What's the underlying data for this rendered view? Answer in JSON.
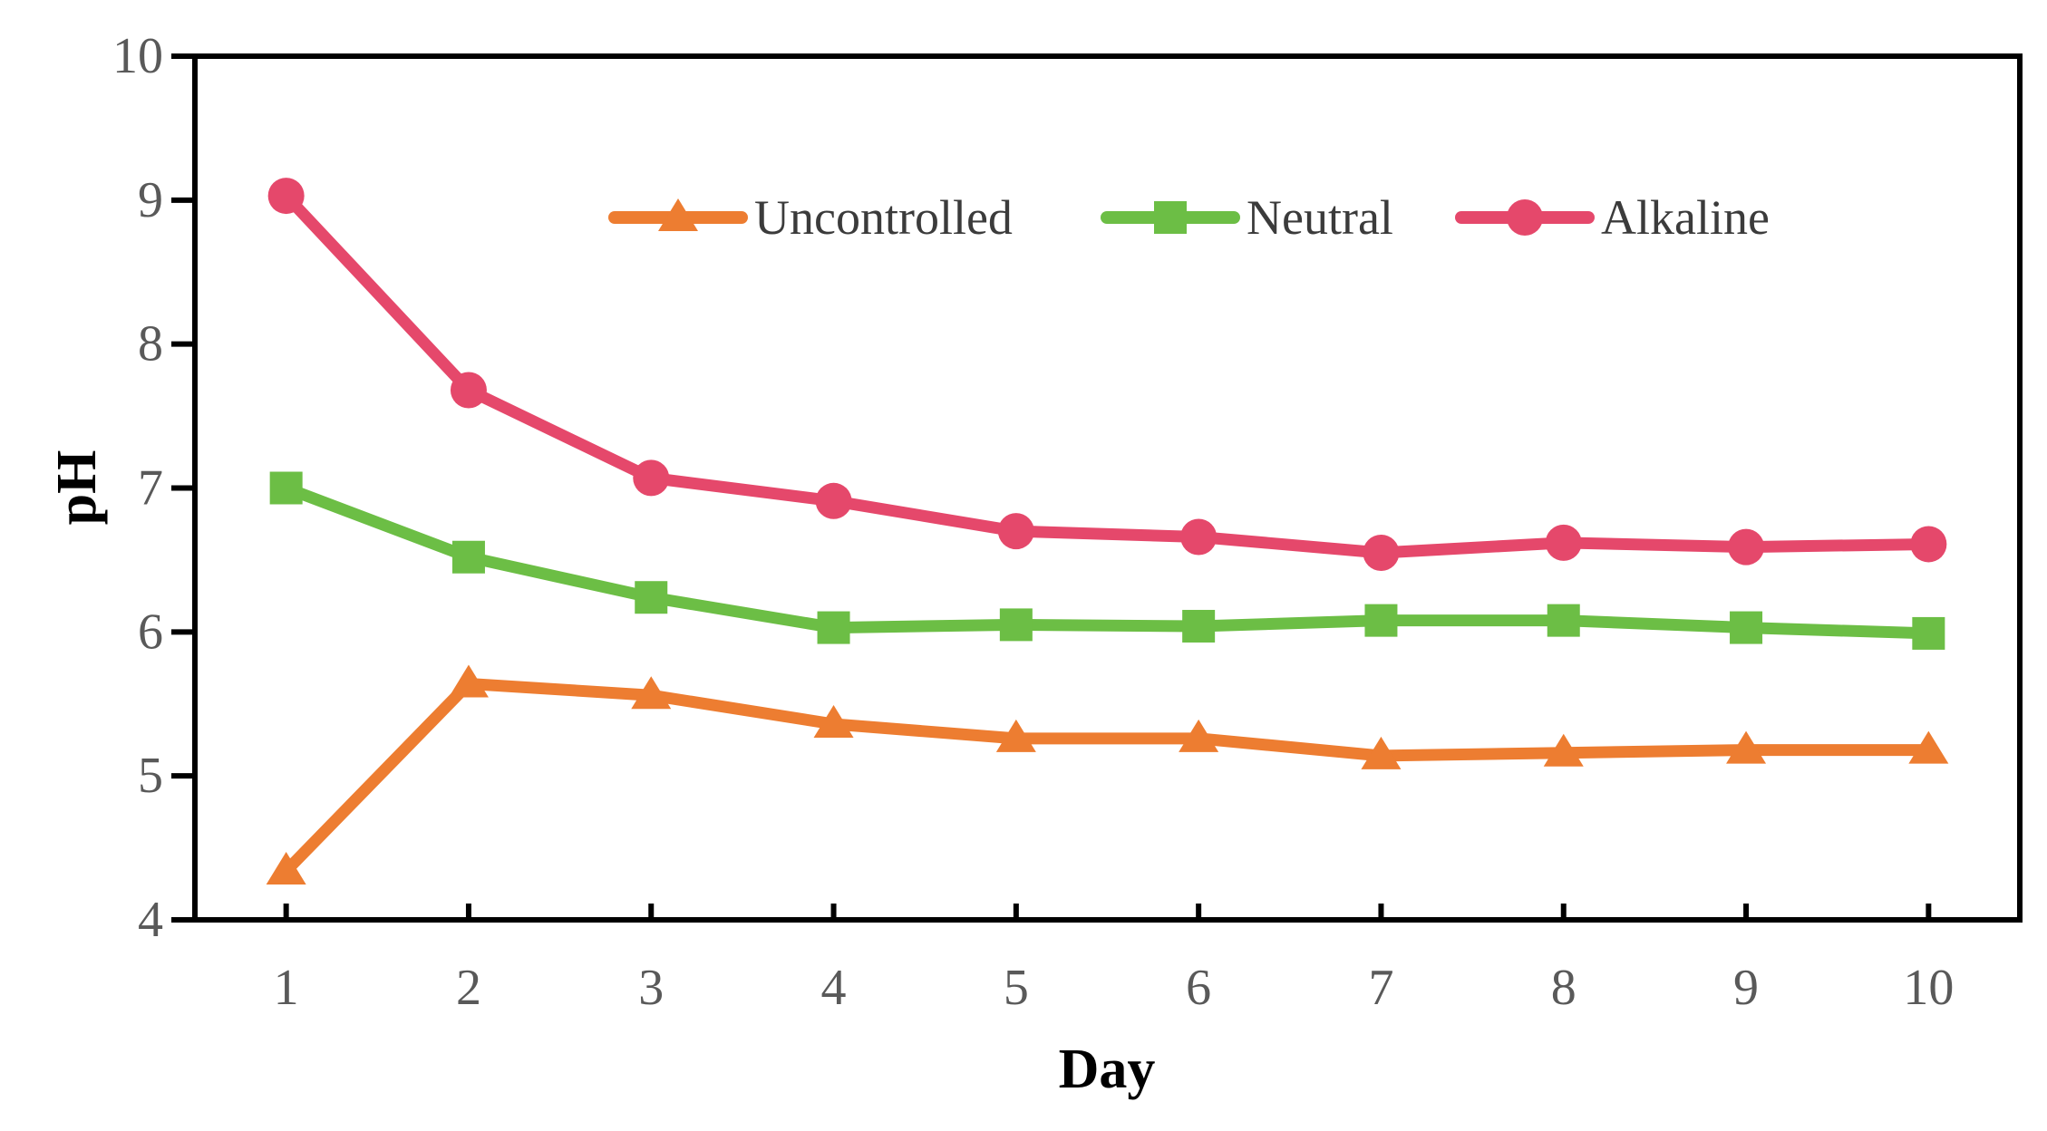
{
  "figure": {
    "background": "#FFFFFF",
    "description": "Line chart of pH versus Day for three fermentation pH-control conditions"
  },
  "chart_data": {
    "type": "line",
    "title": "",
    "xlabel": "Day",
    "ylabel": "pH",
    "x": [
      1,
      2,
      3,
      4,
      5,
      6,
      7,
      8,
      9,
      10
    ],
    "xticks": [
      "1",
      "2",
      "3",
      "4",
      "5",
      "6",
      "7",
      "8",
      "9",
      "10"
    ],
    "yticks": [
      "4",
      "5",
      "6",
      "7",
      "8",
      "9",
      "10"
    ],
    "ytick_values": [
      4,
      5,
      6,
      7,
      8,
      9,
      10
    ],
    "xlim": [
      0.5,
      10.5
    ],
    "ylim": [
      4,
      10
    ],
    "grid": false,
    "legend_position": "top-center-inside",
    "series": [
      {
        "name": "Uncontrolled",
        "color": "#ED7D31",
        "marker": "triangle",
        "values": [
          4.34,
          5.64,
          5.56,
          5.36,
          5.26,
          5.26,
          5.14,
          5.16,
          5.18,
          5.18
        ]
      },
      {
        "name": "Neutral",
        "color": "#6CBE45",
        "marker": "square",
        "values": [
          7.0,
          6.52,
          6.24,
          6.03,
          6.05,
          6.04,
          6.08,
          6.08,
          6.03,
          5.99
        ]
      },
      {
        "name": "Alkaline",
        "color": "#E5486B",
        "marker": "circle",
        "values": [
          9.03,
          7.68,
          7.07,
          6.91,
          6.7,
          6.66,
          6.55,
          6.62,
          6.59,
          6.61
        ]
      }
    ],
    "colors": {
      "axis": "#000000",
      "tick_labels": "#595959",
      "legend_text": "#3B3B3B",
      "background": "#FFFFFF"
    }
  }
}
